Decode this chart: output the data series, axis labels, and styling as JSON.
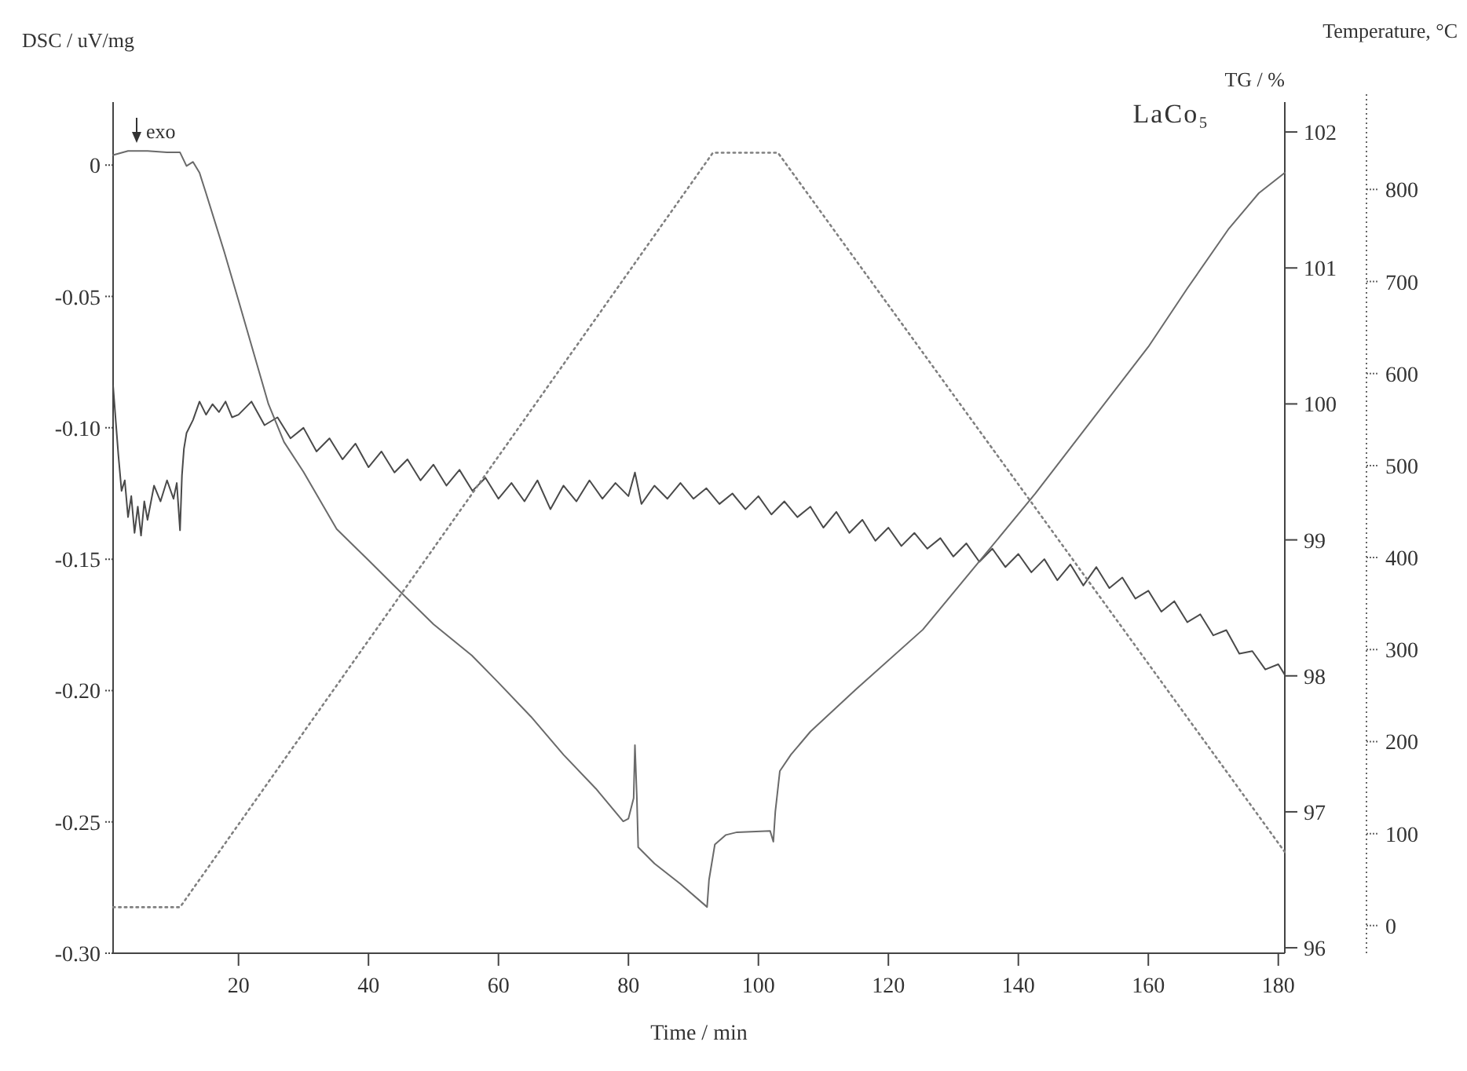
{
  "chart_data": {
    "type": "line",
    "title": "LaCo₅",
    "xlabel": "Time / min",
    "ylabel": "DSC / uV/mg",
    "y2label": "TG / %",
    "y3label": "Temperature, °C",
    "annotations": [
      "exo"
    ],
    "xlim": [
      0.7,
      181
    ],
    "xticks": [
      20,
      40,
      60,
      80,
      100,
      120,
      140,
      160,
      180
    ],
    "ylim": [
      -0.3,
      0.024
    ],
    "yticks": [
      {
        "value": 0,
        "label": "0"
      },
      {
        "value": -0.05,
        "label": "-0.05"
      },
      {
        "value": -0.1,
        "label": "-0.10"
      },
      {
        "value": -0.15,
        "label": "-0.15"
      },
      {
        "value": -0.2,
        "label": "-0.20"
      },
      {
        "value": -0.25,
        "label": "-0.25"
      },
      {
        "value": -0.3,
        "label": "-0.30"
      }
    ],
    "y2lim": [
      95.96,
      102.22
    ],
    "y2ticks": [
      96,
      97,
      98,
      99,
      100,
      101,
      102
    ],
    "y3lim": [
      -30,
      895
    ],
    "y3ticks": [
      0,
      100,
      200,
      300,
      400,
      500,
      600,
      700,
      800
    ],
    "marker": "none",
    "series": [
      {
        "color": "#4a4a4a",
        "line_style": "solid",
        "axis": "y",
        "x": [
          0.7,
          1.5,
          2,
          2.5,
          3,
          3.5,
          4,
          4.5,
          5,
          5.5,
          6,
          7,
          8,
          9,
          10,
          10.5,
          11,
          11.3,
          11.6,
          12,
          13,
          14,
          15,
          16,
          17,
          18,
          19,
          20,
          22,
          24,
          26,
          28,
          30,
          32,
          34,
          36,
          38,
          40,
          42,
          44,
          46,
          48,
          50,
          52,
          54,
          56,
          58,
          60,
          62,
          64,
          66,
          68,
          70,
          72,
          74,
          76,
          78,
          80,
          81,
          82,
          84,
          86,
          88,
          90,
          92,
          94,
          96,
          98,
          100,
          102,
          104,
          106,
          108,
          110,
          112,
          114,
          116,
          118,
          120,
          122,
          124,
          126,
          128,
          130,
          132,
          134,
          136,
          138,
          140,
          142,
          144,
          146,
          148,
          150,
          152,
          154,
          156,
          158,
          160,
          162,
          164,
          166,
          168,
          170,
          172,
          174,
          176,
          178,
          180,
          181
        ],
        "values": [
          -0.084,
          -0.11,
          -0.124,
          -0.12,
          -0.134,
          -0.126,
          -0.14,
          -0.13,
          -0.141,
          -0.128,
          -0.135,
          -0.122,
          -0.128,
          -0.12,
          -0.127,
          -0.121,
          -0.139,
          -0.118,
          -0.108,
          -0.102,
          -0.097,
          -0.09,
          -0.095,
          -0.091,
          -0.094,
          -0.09,
          -0.096,
          -0.095,
          -0.09,
          -0.099,
          -0.096,
          -0.104,
          -0.1,
          -0.109,
          -0.104,
          -0.112,
          -0.106,
          -0.115,
          -0.109,
          -0.117,
          -0.112,
          -0.12,
          -0.114,
          -0.122,
          -0.116,
          -0.124,
          -0.119,
          -0.127,
          -0.121,
          -0.128,
          -0.12,
          -0.131,
          -0.122,
          -0.128,
          -0.12,
          -0.127,
          -0.121,
          -0.126,
          -0.117,
          -0.129,
          -0.122,
          -0.127,
          -0.121,
          -0.127,
          -0.123,
          -0.129,
          -0.125,
          -0.131,
          -0.126,
          -0.133,
          -0.128,
          -0.134,
          -0.13,
          -0.138,
          -0.132,
          -0.14,
          -0.135,
          -0.143,
          -0.138,
          -0.145,
          -0.14,
          -0.146,
          -0.142,
          -0.149,
          -0.144,
          -0.151,
          -0.146,
          -0.153,
          -0.148,
          -0.155,
          -0.15,
          -0.158,
          -0.152,
          -0.16,
          -0.153,
          -0.161,
          -0.157,
          -0.165,
          -0.162,
          -0.17,
          -0.166,
          -0.174,
          -0.171,
          -0.179,
          -0.177,
          -0.186,
          -0.185,
          -0.192,
          -0.19,
          -0.194
        ]
      },
      {
        "color": "#6a6a6a",
        "line_style": "solid",
        "axis": "y2",
        "x": [
          0.7,
          3,
          6,
          9,
          11,
          12,
          13,
          14,
          15,
          17.8,
          20,
          22,
          24.6,
          27,
          30,
          35.1,
          40,
          43.8,
          50,
          55.9,
          60,
          65,
          70,
          75,
          79.2,
          80,
          80.8,
          81,
          81.3,
          81.5,
          84,
          88,
          92.1,
          92.4,
          93.3,
          95,
          96.7,
          101.8,
          102.3,
          102.6,
          103.3,
          105,
          108,
          115,
          125.3,
          135,
          142.6,
          150,
          160,
          166,
          172.4,
          177,
          181
        ],
        "values": [
          101.83,
          101.86,
          101.86,
          101.85,
          101.85,
          101.75,
          101.78,
          101.7,
          101.55,
          101.12,
          100.76,
          100.43,
          100.0,
          99.72,
          99.5,
          99.08,
          98.85,
          98.67,
          98.38,
          98.15,
          97.95,
          97.7,
          97.42,
          97.17,
          96.93,
          96.95,
          97.1,
          97.49,
          97.1,
          96.74,
          96.62,
          96.47,
          96.3,
          96.5,
          96.76,
          96.83,
          96.85,
          96.86,
          96.78,
          97.0,
          97.3,
          97.42,
          97.59,
          97.9,
          98.34,
          98.9,
          99.34,
          99.8,
          100.42,
          100.85,
          101.29,
          101.55,
          101.7
        ]
      },
      {
        "color": "#808080",
        "line_style": "dotted",
        "axis": "y3",
        "x": [
          0.7,
          11,
          93,
          103,
          181
        ],
        "values": [
          20,
          20,
          840,
          840,
          80
        ]
      }
    ]
  }
}
